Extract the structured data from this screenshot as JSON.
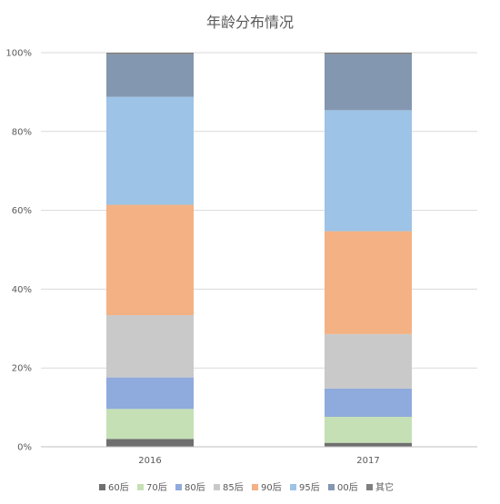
{
  "chart_data": {
    "type": "bar",
    "stacked": true,
    "percent": true,
    "title": "年龄分布情况",
    "xlabel": "",
    "ylabel": "",
    "categories": [
      "2016",
      "2017"
    ],
    "y_ticks": [
      "0%",
      "20%",
      "40%",
      "60%",
      "80%",
      "100%"
    ],
    "ylim": [
      0,
      100
    ],
    "grid": true,
    "legend_position": "bottom",
    "series": [
      {
        "name": "60后",
        "color": "#6f6f6f",
        "values": [
          2.0,
          1.0
        ]
      },
      {
        "name": "70后",
        "color": "#c5e0b4",
        "values": [
          7.6,
          6.6
        ]
      },
      {
        "name": "80后",
        "color": "#8faadc",
        "values": [
          8.0,
          7.2
        ]
      },
      {
        "name": "85后",
        "color": "#c9c9c9",
        "values": [
          15.8,
          13.8
        ]
      },
      {
        "name": "90后",
        "color": "#f4b183",
        "values": [
          28.0,
          26.1
        ]
      },
      {
        "name": "95后",
        "color": "#9dc3e6",
        "values": [
          27.4,
          30.7
        ]
      },
      {
        "name": "00后",
        "color": "#8497b0",
        "values": [
          10.8,
          14.2
        ]
      },
      {
        "name": "其它",
        "color": "#7f7f7f",
        "values": [
          0.4,
          0.4
        ]
      }
    ]
  }
}
